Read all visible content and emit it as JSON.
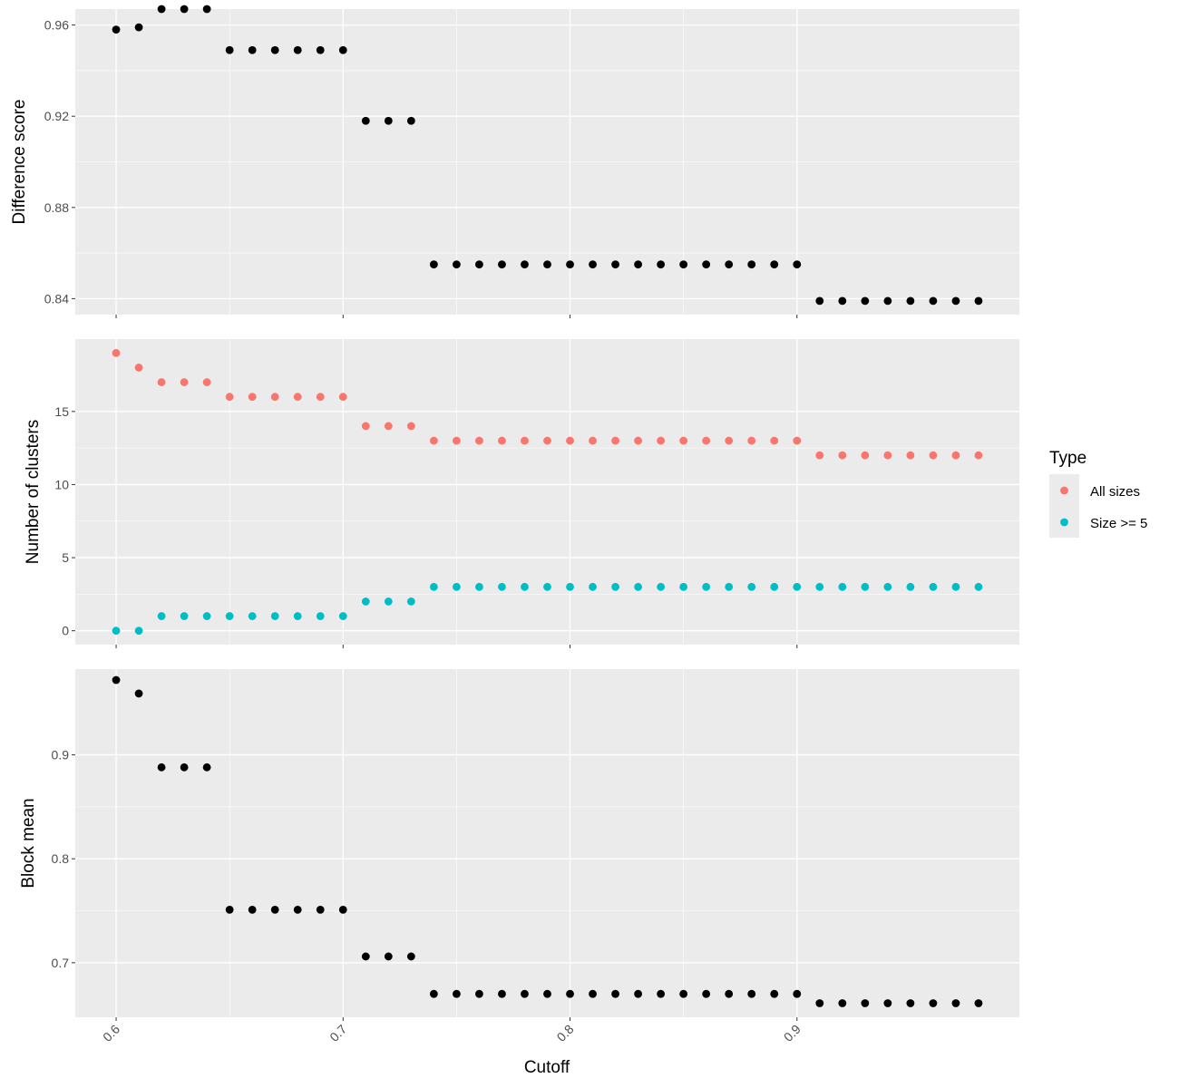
{
  "chart_data": {
    "type": "scatter",
    "x": [
      0.6,
      0.61,
      0.62,
      0.63,
      0.64,
      0.65,
      0.66,
      0.67,
      0.68,
      0.69,
      0.7,
      0.71,
      0.72,
      0.73,
      0.74,
      0.75,
      0.76,
      0.77,
      0.78,
      0.79,
      0.8,
      0.81,
      0.82,
      0.83,
      0.84,
      0.85,
      0.86,
      0.87,
      0.88,
      0.89,
      0.9,
      0.91,
      0.92,
      0.93,
      0.94,
      0.95,
      0.96,
      0.97,
      0.98
    ],
    "xlabel": "Cutoff",
    "xlim": [
      0.582,
      0.998
    ],
    "xticks": [
      0.6,
      0.7,
      0.8,
      0.9
    ],
    "xtick_labels": [
      "0.6",
      "0.7",
      "0.8",
      "0.9"
    ],
    "colors": {
      "panel_bg": "#ebebeb",
      "grid": "#ffffff",
      "point_default": "#000000",
      "all_sizes": "#f8766d",
      "size_ge5": "#00bfc4"
    },
    "legend": {
      "title": "Type",
      "position": "right",
      "entries": [
        {
          "label": "All sizes",
          "color": "#f8766d"
        },
        {
          "label": "Size >= 5",
          "color": "#00bfc4"
        }
      ]
    },
    "panels": [
      {
        "ylabel": "Difference score",
        "ylim": [
          0.833,
          0.967
        ],
        "yticks": [
          0.84,
          0.88,
          0.92,
          0.96
        ],
        "ytick_labels": [
          "0.84",
          "0.88",
          "0.92",
          "0.96"
        ],
        "series": [
          {
            "color": "#000000",
            "values": [
              0.958,
              0.959,
              0.967,
              0.967,
              0.967,
              0.949,
              0.949,
              0.949,
              0.949,
              0.949,
              0.949,
              0.918,
              0.918,
              0.918,
              0.855,
              0.855,
              0.855,
              0.855,
              0.855,
              0.855,
              0.855,
              0.855,
              0.855,
              0.855,
              0.855,
              0.855,
              0.855,
              0.855,
              0.855,
              0.855,
              0.855,
              0.839,
              0.839,
              0.839,
              0.839,
              0.839,
              0.839,
              0.839,
              0.839
            ]
          }
        ]
      },
      {
        "ylabel": "Number of clusters",
        "ylim": [
          -0.95,
          19.95
        ],
        "yticks": [
          0,
          5,
          10,
          15
        ],
        "ytick_labels": [
          "0",
          "5",
          "10",
          "15"
        ],
        "series": [
          {
            "name": "All sizes",
            "color": "#f8766d",
            "values": [
              19,
              18,
              17,
              17,
              17,
              16,
              16,
              16,
              16,
              16,
              16,
              14,
              14,
              14,
              13,
              13,
              13,
              13,
              13,
              13,
              13,
              13,
              13,
              13,
              13,
              13,
              13,
              13,
              13,
              13,
              13,
              12,
              12,
              12,
              12,
              12,
              12,
              12,
              12
            ]
          },
          {
            "name": "Size >= 5",
            "color": "#00bfc4",
            "values": [
              0,
              0,
              1,
              1,
              1,
              1,
              1,
              1,
              1,
              1,
              1,
              2,
              2,
              2,
              3,
              3,
              3,
              3,
              3,
              3,
              3,
              3,
              3,
              3,
              3,
              3,
              3,
              3,
              3,
              3,
              3,
              3,
              3,
              3,
              3,
              3,
              3,
              3,
              3
            ]
          }
        ]
      },
      {
        "ylabel": "Block mean",
        "ylim": [
          0.6475,
          0.9825
        ],
        "yticks": [
          0.7,
          0.8,
          0.9
        ],
        "ytick_labels": [
          "0.7",
          "0.8",
          "0.9"
        ],
        "series": [
          {
            "color": "#000000",
            "values": [
              0.972,
              0.959,
              0.888,
              0.888,
              0.888,
              0.751,
              0.751,
              0.751,
              0.751,
              0.751,
              0.751,
              0.706,
              0.706,
              0.706,
              0.67,
              0.67,
              0.67,
              0.67,
              0.67,
              0.67,
              0.67,
              0.67,
              0.67,
              0.67,
              0.67,
              0.67,
              0.67,
              0.67,
              0.67,
              0.67,
              0.67,
              0.661,
              0.661,
              0.661,
              0.661,
              0.661,
              0.661,
              0.661,
              0.661
            ]
          }
        ]
      }
    ]
  }
}
